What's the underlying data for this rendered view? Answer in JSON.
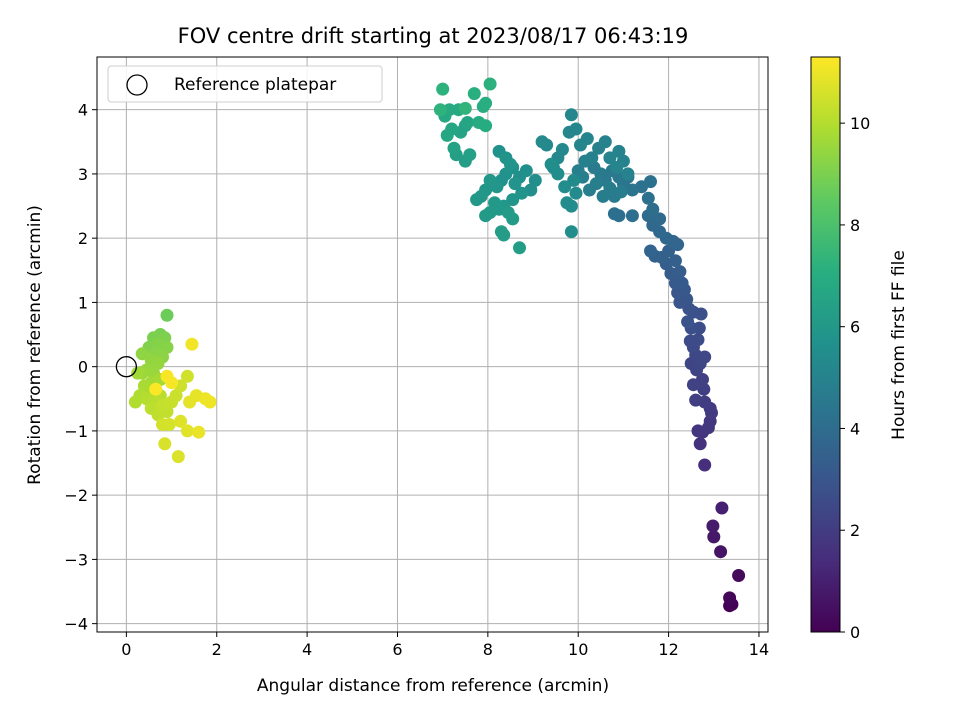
{
  "chart_data": {
    "type": "scatter",
    "title": "FOV centre drift starting at 2023/08/17 06:43:19",
    "xlabel": "Angular distance from reference (arcmin)",
    "ylabel": "Rotation from reference (arcmin)",
    "xlim": [
      -0.65,
      14.2
    ],
    "ylim": [
      -4.13,
      4.82
    ],
    "xticks": [
      0,
      2,
      4,
      6,
      8,
      10,
      12,
      14
    ],
    "yticks": [
      -4,
      -3,
      -2,
      -1,
      0,
      1,
      2,
      3,
      4
    ],
    "grid": true,
    "legend": {
      "placement": "top-left",
      "entries": [
        "Reference platepar"
      ]
    },
    "reference_point": {
      "x": 0,
      "y": 0
    },
    "colorbar": {
      "label": "Hours from first FF file",
      "range": [
        0,
        11.3
      ],
      "ticks": [
        0,
        2,
        4,
        6,
        8,
        10
      ],
      "colormap": "viridis"
    },
    "points": [
      [
        13.35,
        -3.72,
        0.0
      ],
      [
        13.4,
        -3.7,
        0.08
      ],
      [
        13.35,
        -3.6,
        0.15
      ],
      [
        13.55,
        -3.25,
        0.3
      ],
      [
        13.15,
        -2.88,
        0.6
      ],
      [
        13.0,
        -2.65,
        0.75
      ],
      [
        12.98,
        -2.48,
        0.85
      ],
      [
        13.18,
        -2.2,
        1.0
      ],
      [
        12.8,
        -1.53,
        1.5
      ],
      [
        12.7,
        -1.2,
        1.6
      ],
      [
        12.65,
        -1.0,
        1.7
      ],
      [
        12.75,
        -1.02,
        1.75
      ],
      [
        12.88,
        -0.95,
        1.8
      ],
      [
        12.92,
        -0.85,
        1.85
      ],
      [
        12.95,
        -0.72,
        1.9
      ],
      [
        12.92,
        -0.65,
        1.95
      ],
      [
        12.8,
        -0.55,
        2.0
      ],
      [
        12.6,
        -0.52,
        2.05
      ],
      [
        12.78,
        -0.35,
        2.1
      ],
      [
        12.75,
        -0.2,
        2.15
      ],
      [
        12.55,
        -0.28,
        2.2
      ],
      [
        12.62,
        -0.05,
        2.25
      ],
      [
        12.5,
        0.05,
        2.3
      ],
      [
        12.7,
        0.05,
        2.35
      ],
      [
        12.8,
        0.15,
        2.4
      ],
      [
        12.6,
        0.18,
        2.45
      ],
      [
        12.55,
        0.3,
        2.5
      ],
      [
        12.48,
        0.4,
        2.55
      ],
      [
        12.65,
        0.42,
        2.6
      ],
      [
        12.68,
        0.6,
        2.65
      ],
      [
        12.5,
        0.6,
        2.7
      ],
      [
        12.72,
        0.82,
        2.75
      ],
      [
        12.55,
        0.85,
        2.8
      ],
      [
        12.42,
        0.7,
        2.85
      ],
      [
        12.45,
        0.9,
        2.9
      ],
      [
        12.25,
        1.0,
        2.95
      ],
      [
        12.4,
        1.05,
        3.0
      ],
      [
        12.2,
        1.15,
        3.05
      ],
      [
        12.35,
        1.2,
        3.1
      ],
      [
        12.15,
        1.3,
        3.15
      ],
      [
        12.3,
        1.3,
        3.2
      ],
      [
        12.05,
        1.45,
        3.25
      ],
      [
        12.25,
        1.48,
        3.3
      ],
      [
        11.95,
        1.6,
        3.35
      ],
      [
        12.15,
        1.65,
        3.4
      ],
      [
        11.85,
        1.7,
        3.45
      ],
      [
        12.0,
        1.8,
        3.5
      ],
      [
        11.7,
        1.72,
        3.55
      ],
      [
        11.6,
        1.8,
        3.6
      ],
      [
        12.2,
        1.9,
        3.65
      ],
      [
        12.1,
        1.95,
        3.7
      ],
      [
        11.95,
        2.0,
        3.75
      ],
      [
        11.8,
        2.1,
        3.8
      ],
      [
        11.65,
        2.2,
        3.85
      ],
      [
        11.8,
        2.3,
        3.9
      ],
      [
        11.55,
        2.35,
        3.95
      ],
      [
        11.65,
        2.45,
        4.0
      ],
      [
        11.2,
        2.35,
        4.05
      ],
      [
        10.9,
        2.35,
        4.1
      ],
      [
        10.8,
        2.38,
        4.12
      ],
      [
        11.55,
        2.62,
        4.15
      ],
      [
        11.4,
        2.8,
        4.2
      ],
      [
        11.6,
        2.88,
        4.25
      ],
      [
        11.1,
        2.95,
        4.3
      ],
      [
        11.2,
        2.75,
        4.35
      ],
      [
        11.0,
        2.85,
        4.4
      ],
      [
        10.9,
        2.95,
        4.45
      ],
      [
        10.75,
        3.05,
        4.5
      ],
      [
        10.6,
        2.9,
        4.55
      ],
      [
        10.5,
        3.0,
        4.6
      ],
      [
        10.35,
        3.1,
        4.65
      ],
      [
        10.8,
        2.65,
        4.68
      ],
      [
        10.95,
        2.72,
        4.7
      ],
      [
        10.7,
        2.78,
        4.72
      ],
      [
        10.55,
        2.65,
        4.75
      ],
      [
        10.4,
        2.85,
        4.78
      ],
      [
        10.25,
        2.75,
        4.8
      ],
      [
        10.1,
        2.95,
        4.82
      ],
      [
        10.0,
        3.05,
        4.85
      ],
      [
        10.15,
        3.2,
        4.88
      ],
      [
        10.3,
        3.25,
        4.9
      ],
      [
        10.45,
        3.4,
        4.92
      ],
      [
        10.6,
        3.5,
        4.95
      ],
      [
        10.9,
        3.35,
        4.98
      ],
      [
        11.0,
        3.2,
        5.0
      ],
      [
        11.1,
        3.0,
        5.02
      ],
      [
        10.85,
        3.1,
        5.05
      ],
      [
        10.7,
        3.25,
        5.08
      ],
      [
        10.2,
        3.55,
        5.1
      ],
      [
        10.05,
        3.45,
        5.12
      ],
      [
        9.95,
        3.7,
        5.15
      ],
      [
        9.85,
        3.92,
        5.18
      ],
      [
        9.8,
        3.65,
        5.2
      ],
      [
        9.65,
        3.38,
        5.22
      ],
      [
        9.55,
        3.25,
        5.25
      ],
      [
        9.45,
        3.1,
        5.28
      ],
      [
        9.3,
        3.45,
        5.3
      ],
      [
        9.2,
        3.5,
        5.32
      ],
      [
        9.9,
        2.9,
        5.35
      ],
      [
        9.95,
        2.7,
        5.38
      ],
      [
        9.85,
        2.5,
        5.4
      ],
      [
        9.75,
        2.55,
        5.42
      ],
      [
        9.85,
        2.1,
        5.45
      ],
      [
        9.7,
        2.8,
        5.48
      ],
      [
        9.55,
        3.0,
        5.5
      ],
      [
        9.4,
        3.15,
        5.52
      ],
      [
        9.05,
        2.9,
        5.55
      ],
      [
        8.95,
        2.75,
        5.58
      ],
      [
        8.85,
        3.05,
        5.6
      ],
      [
        8.7,
        2.95,
        5.62
      ],
      [
        8.55,
        3.1,
        5.65
      ],
      [
        8.4,
        3.0,
        5.68
      ],
      [
        8.3,
        2.9,
        5.7
      ],
      [
        8.25,
        3.35,
        5.72
      ],
      [
        8.4,
        3.25,
        5.75
      ],
      [
        8.5,
        3.15,
        5.78
      ],
      [
        8.6,
        2.85,
        5.8
      ],
      [
        8.75,
        2.7,
        5.82
      ],
      [
        8.55,
        2.6,
        5.85
      ],
      [
        8.35,
        2.5,
        5.88
      ],
      [
        8.2,
        2.8,
        5.9
      ],
      [
        8.05,
        2.9,
        5.92
      ],
      [
        7.95,
        2.75,
        5.95
      ],
      [
        7.85,
        2.65,
        5.98
      ],
      [
        7.75,
        2.6,
        6.0
      ],
      [
        8.15,
        2.55,
        6.02
      ],
      [
        8.25,
        2.45,
        6.05
      ],
      [
        8.05,
        2.4,
        6.08
      ],
      [
        7.95,
        2.35,
        6.1
      ],
      [
        8.45,
        2.4,
        6.12
      ],
      [
        8.55,
        2.3,
        6.15
      ],
      [
        8.3,
        2.1,
        6.18
      ],
      [
        8.35,
        2.05,
        6.2
      ],
      [
        8.7,
        1.85,
        6.22
      ],
      [
        7.5,
        3.2,
        6.3
      ],
      [
        7.3,
        3.3,
        6.35
      ],
      [
        7.6,
        3.3,
        6.4
      ],
      [
        7.25,
        3.4,
        6.45
      ],
      [
        7.5,
        3.75,
        6.5
      ],
      [
        7.4,
        3.65,
        6.55
      ],
      [
        7.55,
        3.8,
        6.6
      ],
      [
        7.2,
        3.7,
        6.65
      ],
      [
        7.1,
        3.6,
        6.7
      ],
      [
        7.05,
        3.9,
        6.75
      ],
      [
        7.15,
        4.0,
        6.8
      ],
      [
        7.35,
        4.0,
        6.85
      ],
      [
        7.8,
        3.8,
        6.9
      ],
      [
        7.95,
        3.75,
        6.95
      ],
      [
        7.9,
        4.05,
        7.0
      ],
      [
        7.95,
        4.1,
        7.05
      ],
      [
        7.7,
        4.25,
        7.1
      ],
      [
        8.05,
        4.4,
        7.15
      ],
      [
        7.0,
        4.32,
        7.2
      ],
      [
        6.95,
        4.0,
        7.25
      ],
      [
        7.5,
        4.02,
        7.3
      ],
      [
        0.9,
        0.8,
        8.7
      ],
      [
        0.75,
        0.5,
        8.9
      ],
      [
        0.6,
        0.45,
        9.0
      ],
      [
        0.85,
        0.45,
        9.05
      ],
      [
        0.5,
        0.3,
        9.1
      ],
      [
        0.7,
        0.35,
        9.15
      ],
      [
        0.9,
        0.3,
        9.2
      ],
      [
        0.65,
        0.2,
        9.25
      ],
      [
        0.8,
        0.15,
        9.3
      ],
      [
        0.35,
        0.2,
        9.35
      ],
      [
        0.55,
        0.1,
        9.4
      ],
      [
        0.7,
        0.05,
        9.45
      ],
      [
        0.45,
        -0.05,
        9.5
      ],
      [
        0.6,
        -0.1,
        9.55
      ],
      [
        0.35,
        -0.1,
        9.6
      ],
      [
        0.25,
        -0.1,
        9.65
      ],
      [
        0.55,
        -0.25,
        9.7
      ],
      [
        0.75,
        -0.2,
        9.75
      ],
      [
        0.4,
        -0.3,
        9.8
      ],
      [
        0.5,
        -0.4,
        9.85
      ],
      [
        0.3,
        -0.45,
        9.9
      ],
      [
        0.2,
        -0.55,
        9.95
      ],
      [
        0.45,
        -0.5,
        10.0
      ],
      [
        0.6,
        -0.55,
        10.05
      ],
      [
        0.75,
        -0.45,
        10.1
      ],
      [
        0.55,
        -0.65,
        10.15
      ],
      [
        0.7,
        -0.75,
        10.2
      ],
      [
        0.9,
        -0.7,
        10.25
      ],
      [
        0.8,
        -0.6,
        10.3
      ],
      [
        1.0,
        -0.55,
        10.35
      ],
      [
        1.1,
        -0.45,
        10.4
      ],
      [
        1.2,
        -0.3,
        10.45
      ],
      [
        1.35,
        -0.15,
        10.5
      ],
      [
        0.8,
        -0.9,
        10.55
      ],
      [
        0.95,
        -0.9,
        10.6
      ],
      [
        0.85,
        -1.2,
        10.65
      ],
      [
        1.15,
        -1.4,
        10.7
      ],
      [
        1.2,
        -0.85,
        10.75
      ],
      [
        1.35,
        -1.0,
        10.8
      ],
      [
        1.4,
        -0.55,
        10.85
      ],
      [
        1.55,
        -0.45,
        10.9
      ],
      [
        1.6,
        -1.02,
        10.95
      ],
      [
        1.75,
        -0.5,
        11.0
      ],
      [
        1.85,
        -0.55,
        11.05
      ],
      [
        1.45,
        0.35,
        11.1
      ],
      [
        1.0,
        -0.25,
        11.15
      ],
      [
        0.9,
        -0.15,
        11.2
      ],
      [
        0.65,
        -0.35,
        11.25
      ]
    ]
  }
}
